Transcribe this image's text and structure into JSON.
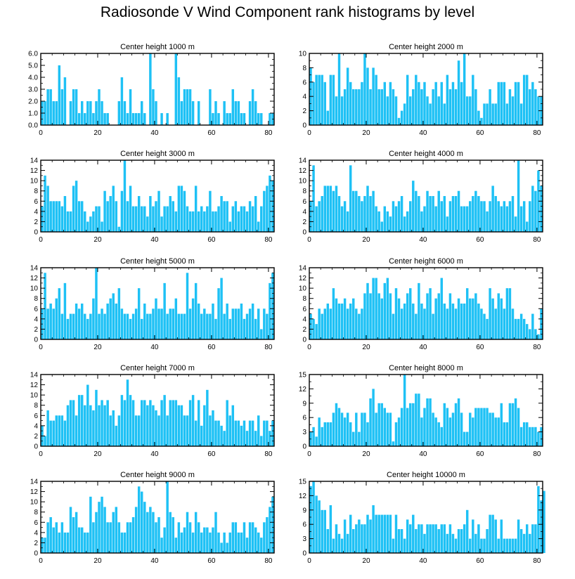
{
  "title": "Radiosonde V Wind Component rank histograms by level",
  "bar_color": "#1ec1f5",
  "chart_data": [
    {
      "type": "bar",
      "title": "Center height 1000 m",
      "ylim": [
        0,
        6
      ],
      "yticks": [
        "0.0",
        "1.0",
        "2.0",
        "3.0",
        "4.0",
        "5.0",
        "6.0"
      ],
      "xlim": [
        0,
        82
      ],
      "xticks": [
        "0",
        "20",
        "40",
        "60",
        "80"
      ],
      "values": [
        2,
        2,
        3,
        3,
        2,
        2,
        5,
        3,
        4,
        0,
        2,
        3,
        3,
        1,
        2,
        1,
        2,
        2,
        1,
        2,
        3,
        2,
        1,
        1,
        0,
        0,
        0,
        2,
        4,
        2,
        1,
        3,
        1,
        1,
        1,
        2,
        1,
        0,
        6,
        3,
        2,
        0,
        1,
        0,
        1,
        0,
        0,
        6,
        4,
        2,
        3,
        3,
        3,
        2,
        0,
        2,
        0,
        0,
        0,
        3,
        1,
        2,
        1,
        0,
        2,
        1,
        1,
        3,
        2,
        2,
        1,
        1,
        0,
        2,
        3,
        2,
        1,
        1,
        0,
        0,
        1,
        1
      ]
    },
    {
      "type": "bar",
      "title": "Center height 2000 m",
      "ylim": [
        0,
        10
      ],
      "yticks": [
        "0",
        "2",
        "4",
        "6",
        "8",
        "10"
      ],
      "xlim": [
        0,
        82
      ],
      "xticks": [
        "0",
        "20",
        "40",
        "60",
        "80"
      ],
      "values": [
        8,
        6,
        7,
        7,
        7,
        6,
        2,
        7,
        7,
        4,
        10,
        4,
        5,
        8,
        6,
        5,
        5,
        5,
        6,
        10,
        8,
        5,
        8,
        7,
        5,
        5,
        6,
        4,
        6,
        5,
        4,
        1,
        2,
        3,
        7,
        4,
        5,
        7,
        6,
        5,
        6,
        4,
        3,
        5,
        6,
        4,
        6,
        3,
        7,
        5,
        6,
        5,
        9,
        6,
        10,
        4,
        4,
        7,
        5,
        2,
        1,
        3,
        3,
        5,
        3,
        3,
        6,
        6,
        6,
        3,
        5,
        4,
        6,
        6,
        3,
        7,
        7,
        5,
        6,
        5,
        4,
        4
      ]
    },
    {
      "type": "bar",
      "title": "Center height 3000 m",
      "ylim": [
        0,
        14
      ],
      "yticks": [
        "0",
        "2",
        "4",
        "6",
        "8",
        "10",
        "12",
        "14"
      ],
      "xlim": [
        0,
        82
      ],
      "xticks": [
        "0",
        "20",
        "40",
        "60",
        "80"
      ],
      "values": [
        5,
        11,
        9,
        6,
        6,
        6,
        6,
        5,
        7,
        4,
        4,
        9,
        10,
        6,
        6,
        4,
        2,
        3,
        4,
        5,
        5,
        2,
        8,
        6,
        7,
        9,
        6,
        1,
        8,
        14,
        6,
        9,
        5,
        5,
        7,
        5,
        5,
        3,
        7,
        5,
        6,
        8,
        3,
        5,
        5,
        7,
        6,
        4,
        9,
        9,
        8,
        5,
        4,
        4,
        9,
        4,
        5,
        4,
        5,
        8,
        4,
        4,
        5,
        7,
        6,
        6,
        2,
        5,
        6,
        4,
        5,
        5,
        4,
        6,
        5,
        7,
        2,
        5,
        8,
        9,
        11,
        10
      ]
    },
    {
      "type": "bar",
      "title": "Center height 4000 m",
      "ylim": [
        0,
        14
      ],
      "yticks": [
        "0",
        "2",
        "4",
        "6",
        "8",
        "10",
        "12",
        "14"
      ],
      "xlim": [
        0,
        82
      ],
      "xticks": [
        "0",
        "20",
        "40",
        "60",
        "80"
      ],
      "values": [
        6,
        13,
        5,
        6,
        7,
        9,
        9,
        9,
        8,
        9,
        7,
        5,
        6,
        4,
        13,
        8,
        8,
        7,
        6,
        7,
        9,
        7,
        8,
        5,
        4,
        2,
        5,
        4,
        3,
        6,
        5,
        6,
        7,
        3,
        4,
        6,
        10,
        8,
        7,
        4,
        5,
        8,
        7,
        7,
        5,
        8,
        6,
        7,
        3,
        6,
        7,
        7,
        8,
        5,
        5,
        5,
        6,
        7,
        8,
        7,
        6,
        6,
        4,
        6,
        9,
        7,
        6,
        5,
        6,
        5,
        6,
        7,
        3,
        14,
        5,
        6,
        2,
        6,
        9,
        8,
        12,
        9
      ]
    },
    {
      "type": "bar",
      "title": "Center height 5000 m",
      "ylim": [
        0,
        14
      ],
      "yticks": [
        "0",
        "2",
        "4",
        "6",
        "8",
        "10",
        "12",
        "14"
      ],
      "xlim": [
        0,
        82
      ],
      "xticks": [
        "0",
        "20",
        "40",
        "60",
        "80"
      ],
      "values": [
        6,
        13,
        6,
        7,
        6,
        8,
        10,
        5,
        11,
        4,
        5,
        5,
        7,
        6,
        7,
        5,
        4,
        5,
        8,
        14,
        5,
        6,
        5,
        7,
        8,
        9,
        7,
        10,
        6,
        5,
        5,
        4,
        5,
        6,
        10,
        4,
        7,
        5,
        5,
        6,
        8,
        6,
        6,
        11,
        5,
        6,
        6,
        8,
        5,
        5,
        5,
        13,
        6,
        8,
        11,
        7,
        5,
        6,
        5,
        5,
        7,
        4,
        10,
        12,
        5,
        7,
        4,
        6,
        6,
        6,
        7,
        4,
        5,
        6,
        7,
        4,
        6,
        2,
        6,
        5,
        11,
        13
      ]
    },
    {
      "type": "bar",
      "title": "Center height 6000 m",
      "ylim": [
        0,
        14
      ],
      "yticks": [
        "0",
        "2",
        "4",
        "6",
        "8",
        "10",
        "12",
        "14"
      ],
      "xlim": [
        0,
        82
      ],
      "xticks": [
        "0",
        "20",
        "40",
        "60",
        "80"
      ],
      "values": [
        5,
        4,
        3,
        6,
        5,
        6,
        7,
        6,
        10,
        8,
        7,
        7,
        8,
        6,
        7,
        8,
        6,
        5,
        6,
        9,
        11,
        9,
        12,
        12,
        9,
        8,
        11,
        12,
        9,
        5,
        10,
        8,
        6,
        7,
        9,
        10,
        7,
        5,
        11,
        7,
        6,
        9,
        10,
        5,
        8,
        9,
        12,
        7,
        6,
        9,
        7,
        6,
        8,
        7,
        7,
        10,
        8,
        8,
        9,
        7,
        6,
        5,
        4,
        10,
        8,
        6,
        9,
        8,
        6,
        10,
        10,
        6,
        4,
        4,
        5,
        4,
        3,
        2,
        5,
        2,
        1,
        6
      ]
    },
    {
      "type": "bar",
      "title": "Center height 7000 m",
      "ylim": [
        0,
        14
      ],
      "yticks": [
        "0",
        "2",
        "4",
        "6",
        "8",
        "10",
        "12",
        "14"
      ],
      "xlim": [
        0,
        82
      ],
      "xticks": [
        "0",
        "20",
        "40",
        "60",
        "80"
      ],
      "values": [
        4,
        2,
        7,
        5,
        5,
        6,
        6,
        6,
        5,
        8,
        9,
        9,
        6,
        10,
        10,
        8,
        12,
        8,
        7,
        11,
        8,
        9,
        8,
        9,
        6,
        7,
        4,
        6,
        10,
        9,
        13,
        10,
        9,
        6,
        6,
        9,
        9,
        8,
        9,
        8,
        7,
        6,
        9,
        10,
        6,
        9,
        9,
        9,
        8,
        8,
        6,
        6,
        9,
        10,
        5,
        9,
        4,
        8,
        11,
        6,
        7,
        5,
        5,
        4,
        3,
        9,
        6,
        8,
        5,
        5,
        4,
        5,
        3,
        5,
        5,
        3,
        6,
        2,
        5,
        5,
        3,
        5
      ]
    },
    {
      "type": "bar",
      "title": "Center height 8000 m",
      "ylim": [
        0,
        15
      ],
      "yticks": [
        "0",
        "3",
        "6",
        "9",
        "12",
        "15"
      ],
      "xlim": [
        0,
        82
      ],
      "xticks": [
        "0",
        "20",
        "40",
        "60",
        "80"
      ],
      "values": [
        3,
        4,
        2,
        6,
        4,
        5,
        5,
        5,
        7,
        9,
        8,
        7,
        6,
        7,
        5,
        3,
        7,
        3,
        7,
        7,
        5,
        10,
        12,
        7,
        9,
        9,
        8,
        7,
        7,
        1,
        5,
        6,
        8,
        15,
        8,
        9,
        9,
        11,
        11,
        6,
        8,
        10,
        10,
        7,
        6,
        5,
        4,
        9,
        8,
        6,
        7,
        9,
        10,
        7,
        3,
        3,
        7,
        6,
        8,
        8,
        8,
        8,
        8,
        7,
        7,
        6,
        6,
        9,
        5,
        5,
        9,
        9,
        10,
        8,
        4,
        5,
        5,
        4,
        4,
        4,
        3,
        4
      ]
    },
    {
      "type": "bar",
      "title": "Center height 9000 m",
      "ylim": [
        0,
        14
      ],
      "yticks": [
        "0",
        "2",
        "4",
        "6",
        "8",
        "10",
        "12",
        "14"
      ],
      "xlim": [
        0,
        82
      ],
      "xticks": [
        "0",
        "20",
        "40",
        "60",
        "80"
      ],
      "values": [
        3,
        3,
        6,
        7,
        5,
        6,
        4,
        6,
        4,
        4,
        9,
        7,
        8,
        5,
        5,
        4,
        4,
        11,
        6,
        8,
        10,
        11,
        9,
        6,
        6,
        8,
        9,
        6,
        4,
        4,
        6,
        6,
        7,
        9,
        13,
        12,
        10,
        8,
        9,
        8,
        6,
        7,
        3,
        5,
        14,
        8,
        7,
        3,
        6,
        4,
        5,
        8,
        6,
        4,
        8,
        6,
        4,
        5,
        5,
        4,
        5,
        8,
        4,
        2,
        4,
        2,
        4,
        6,
        6,
        4,
        4,
        6,
        3,
        6,
        6,
        5,
        4,
        3,
        6,
        7,
        9,
        11
      ]
    },
    {
      "type": "bar",
      "title": "Center height 10000 m",
      "ylim": [
        0,
        15
      ],
      "yticks": [
        "0",
        "3",
        "6",
        "9",
        "12",
        "15"
      ],
      "xlim": [
        0,
        82
      ],
      "xticks": [
        "0",
        "20",
        "40",
        "60",
        "80"
      ],
      "values": [
        14,
        15,
        12,
        11,
        9,
        9,
        5,
        10,
        3,
        6,
        4,
        3,
        7,
        4,
        8,
        5,
        6,
        7,
        6,
        6,
        8,
        7,
        10,
        8,
        8,
        8,
        8,
        8,
        8,
        3,
        8,
        5,
        5,
        3,
        7,
        6,
        8,
        5,
        6,
        6,
        4,
        6,
        6,
        6,
        6,
        5,
        6,
        6,
        4,
        6,
        4,
        3,
        5,
        5,
        6,
        9,
        3,
        7,
        4,
        6,
        3,
        3,
        5,
        8,
        8,
        7,
        3,
        7,
        3,
        3,
        3,
        3,
        3,
        7,
        5,
        4,
        6,
        4,
        6,
        6,
        14,
        11,
        13
      ]
    }
  ]
}
